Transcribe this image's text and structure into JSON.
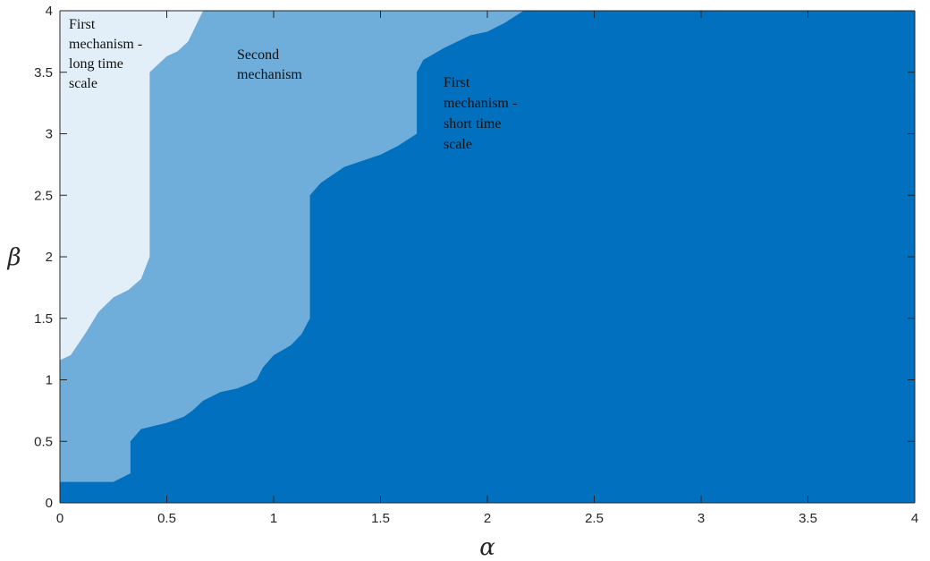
{
  "chart_data": {
    "type": "area",
    "title": "",
    "xlabel": "α",
    "ylabel": "β",
    "xlim": [
      0,
      4
    ],
    "ylim": [
      0,
      4
    ],
    "xticks": [
      "0",
      "0.5",
      "1",
      "1.5",
      "2",
      "2.5",
      "3",
      "3.5",
      "4"
    ],
    "yticks": [
      "0",
      "0.5",
      "1",
      "1.5",
      "2",
      "2.5",
      "3",
      "3.5",
      "4"
    ],
    "grid": false,
    "regions": [
      {
        "name": "First mechanism - long time scale",
        "color": "#e3eff8",
        "boundary_points": []
      },
      {
        "name": "Second mechanism",
        "color": "#6fadda",
        "boundary_points": [
          [
            0.0,
            1.16
          ],
          [
            0.05,
            1.2
          ],
          [
            0.12,
            1.38
          ],
          [
            0.18,
            1.55
          ],
          [
            0.25,
            1.67
          ],
          [
            0.32,
            1.73
          ],
          [
            0.38,
            1.82
          ],
          [
            0.42,
            2.0
          ],
          [
            0.42,
            3.5
          ],
          [
            0.5,
            3.63
          ],
          [
            0.55,
            3.67
          ],
          [
            0.6,
            3.75
          ],
          [
            0.67,
            4.0
          ]
        ]
      },
      {
        "name": "First mechanism - short time scale",
        "color": "#0070bf",
        "boundary_points": [
          [
            0.0,
            0.17
          ],
          [
            0.25,
            0.17
          ],
          [
            0.33,
            0.24
          ],
          [
            0.33,
            0.5
          ],
          [
            0.38,
            0.6
          ],
          [
            0.5,
            0.65
          ],
          [
            0.58,
            0.7
          ],
          [
            0.62,
            0.75
          ],
          [
            0.67,
            0.83
          ],
          [
            0.75,
            0.9
          ],
          [
            0.83,
            0.93
          ],
          [
            0.9,
            0.98
          ],
          [
            0.92,
            1.0
          ],
          [
            0.95,
            1.1
          ],
          [
            1.0,
            1.2
          ],
          [
            1.08,
            1.28
          ],
          [
            1.13,
            1.37
          ],
          [
            1.17,
            1.5
          ],
          [
            1.17,
            2.5
          ],
          [
            1.22,
            2.6
          ],
          [
            1.33,
            2.73
          ],
          [
            1.5,
            2.83
          ],
          [
            1.58,
            2.9
          ],
          [
            1.67,
            3.0
          ],
          [
            1.67,
            3.5
          ],
          [
            1.7,
            3.6
          ],
          [
            1.8,
            3.7
          ],
          [
            1.92,
            3.8
          ],
          [
            2.0,
            3.83
          ],
          [
            2.08,
            3.9
          ],
          [
            2.17,
            4.0
          ]
        ]
      }
    ],
    "annotations": [
      {
        "text": [
          "First",
          "mechanism -",
          "long time",
          "scale"
        ]
      },
      {
        "text": [
          "Second",
          "mechanism"
        ]
      },
      {
        "text": [
          "First",
          "mechanism -",
          "short time",
          "scale"
        ]
      }
    ]
  }
}
